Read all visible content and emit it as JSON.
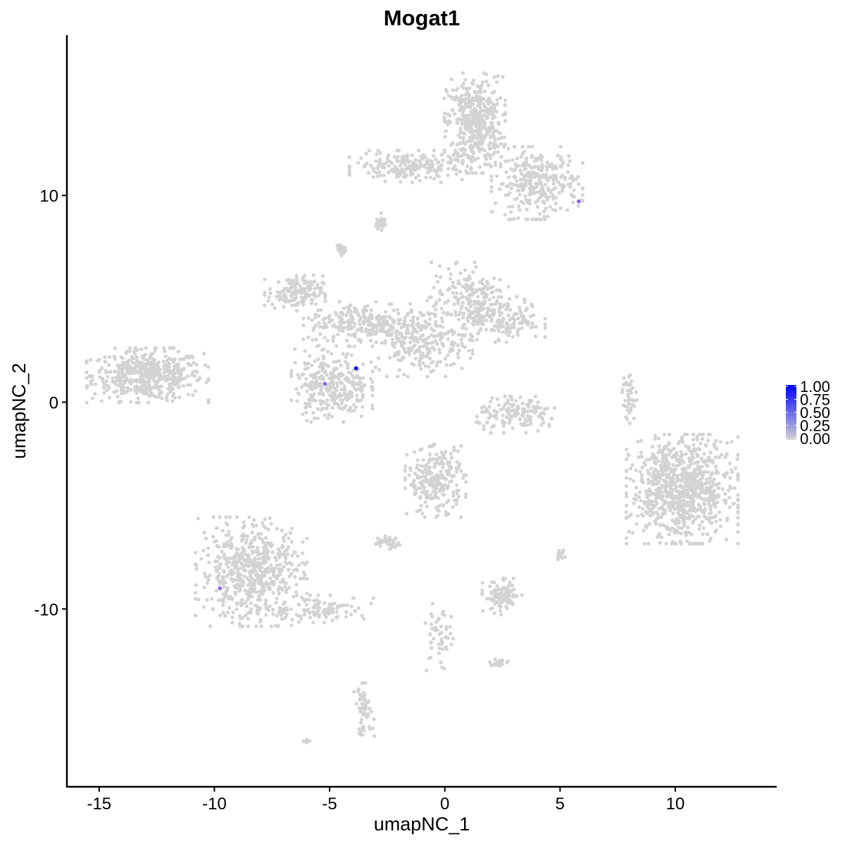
{
  "chart_data": {
    "type": "scatter",
    "title": "Mogat1",
    "xlabel": "umapNC_1",
    "ylabel": "umapNC_2",
    "xlim": [
      -16.4,
      14.4
    ],
    "ylim": [
      -18.6,
      17.75
    ],
    "xticks": [
      -15,
      -10,
      -5,
      0,
      5,
      10
    ],
    "yticks": [
      -10,
      0,
      10
    ],
    "grid": false,
    "colors": {
      "low": "#d3d3d3",
      "high": "#0000ff"
    },
    "legend": {
      "placement": "right",
      "ticks": [
        "1.00",
        "0.75",
        "0.50",
        "0.25",
        "0.00"
      ],
      "range": [
        0,
        1
      ]
    },
    "clusters": [
      {
        "center": [
          -12.9,
          1.3
        ],
        "spread": [
          1.2,
          0.6
        ],
        "n": 500
      },
      {
        "center": [
          1.3,
          13.5
        ],
        "spread": [
          0.6,
          1.1
        ],
        "n": 450
      },
      {
        "center": [
          4.0,
          10.6
        ],
        "spread": [
          0.9,
          0.8
        ],
        "n": 300
      },
      {
        "center": [
          -1.5,
          11.4
        ],
        "spread": [
          1.2,
          0.35
        ],
        "n": 200
      },
      {
        "center": [
          -6.5,
          5.3
        ],
        "spread": [
          0.6,
          0.4
        ],
        "n": 150
      },
      {
        "center": [
          -3.5,
          3.8
        ],
        "spread": [
          1.2,
          0.5
        ],
        "n": 250
      },
      {
        "center": [
          -1.0,
          3.0
        ],
        "spread": [
          1.0,
          0.8
        ],
        "n": 250
      },
      {
        "center": [
          1.0,
          5.0
        ],
        "spread": [
          0.8,
          0.8
        ],
        "n": 200
      },
      {
        "center": [
          2.6,
          4.0
        ],
        "spread": [
          0.8,
          0.5
        ],
        "n": 150
      },
      {
        "center": [
          -4.9,
          0.8
        ],
        "spread": [
          0.8,
          0.8
        ],
        "n": 300
      },
      {
        "center": [
          3.2,
          -0.6
        ],
        "spread": [
          0.9,
          0.4
        ],
        "n": 150
      },
      {
        "center": [
          10.3,
          -4.2
        ],
        "spread": [
          1.1,
          1.2
        ],
        "n": 900
      },
      {
        "center": [
          -8.4,
          -8.2
        ],
        "spread": [
          1.1,
          1.2
        ],
        "n": 600
      },
      {
        "center": [
          -5.3,
          -10.0
        ],
        "spread": [
          1.0,
          0.3
        ],
        "n": 100
      },
      {
        "center": [
          -0.4,
          -3.8
        ],
        "spread": [
          0.6,
          0.8
        ],
        "n": 250
      },
      {
        "center": [
          -2.5,
          -6.8
        ],
        "spread": [
          0.3,
          0.15
        ],
        "n": 40
      },
      {
        "center": [
          2.5,
          -9.4
        ],
        "spread": [
          0.4,
          0.4
        ],
        "n": 100
      },
      {
        "center": [
          -0.3,
          -11.5
        ],
        "spread": [
          0.3,
          0.8
        ],
        "n": 50
      },
      {
        "center": [
          -3.5,
          -14.9
        ],
        "spread": [
          0.2,
          0.6
        ],
        "n": 60
      },
      {
        "center": [
          5.0,
          -7.4
        ],
        "spread": [
          0.1,
          0.15
        ],
        "n": 15
      },
      {
        "center": [
          8.0,
          0.3
        ],
        "spread": [
          0.15,
          0.6
        ],
        "n": 40
      },
      {
        "center": [
          2.4,
          -12.6
        ],
        "spread": [
          0.2,
          0.1
        ],
        "n": 20
      },
      {
        "center": [
          -6.0,
          -16.4
        ],
        "spread": [
          0.1,
          0.05
        ],
        "n": 8
      },
      {
        "center": [
          -2.8,
          8.7
        ],
        "spread": [
          0.1,
          0.2
        ],
        "n": 25
      },
      {
        "center": [
          -4.5,
          7.4
        ],
        "spread": [
          0.1,
          0.15
        ],
        "n": 25
      }
    ],
    "expressing_points": [
      {
        "x": 5.81,
        "y": 9.71,
        "value": 0.5
      },
      {
        "x": -5.2,
        "y": 0.89,
        "value": 0.5
      },
      {
        "x": -9.76,
        "y": -9.0,
        "value": 0.5
      },
      {
        "x": -3.85,
        "y": 1.64,
        "value": 1.0
      }
    ]
  }
}
